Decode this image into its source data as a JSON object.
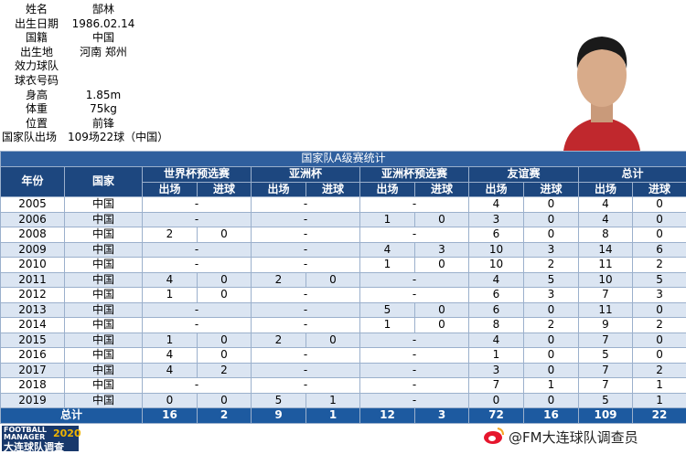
{
  "info": [
    {
      "label": "姓名",
      "value": "郜林"
    },
    {
      "label": "出生日期",
      "value": "1986.02.14"
    },
    {
      "label": "国籍",
      "value": "中国"
    },
    {
      "label": "出生地",
      "value": "河南 郑州"
    },
    {
      "label": "效力球队"
    },
    {
      "label": "球衣号码"
    },
    {
      "label": "身高",
      "value": "1.85m"
    },
    {
      "label": "体重",
      "value": "75kg"
    },
    {
      "label": "位置",
      "value": "前锋"
    },
    {
      "label": "国家队出场",
      "value": "109场22球（中国）"
    }
  ],
  "table": {
    "title": "国家队A级赛统计",
    "columns": [
      "年份",
      "国家"
    ],
    "groups": [
      {
        "name": "世界杯预选赛",
        "sub": [
          "出场",
          "进球"
        ]
      },
      {
        "name": "亚洲杯",
        "sub": [
          "出场",
          "进球"
        ]
      },
      {
        "name": "亚洲杯预选赛",
        "sub": [
          "出场",
          "进球"
        ]
      },
      {
        "name": "友谊赛",
        "sub": [
          "出场",
          "进球"
        ]
      },
      {
        "name": "总计",
        "sub": [
          "出场",
          "进球"
        ]
      }
    ],
    "rows": [
      {
        "year": "2005",
        "country": "中国",
        "stats": [
          "-",
          "-",
          "-",
          [
            4,
            0
          ],
          [
            4,
            0
          ]
        ]
      },
      {
        "year": "2006",
        "country": "中国",
        "stats": [
          "-",
          "-",
          [
            1,
            0
          ],
          [
            3,
            0
          ],
          [
            4,
            0
          ]
        ]
      },
      {
        "year": "2008",
        "country": "中国",
        "stats": [
          [
            2,
            0
          ],
          "-",
          "-",
          [
            6,
            0
          ],
          [
            8,
            0
          ]
        ]
      },
      {
        "year": "2009",
        "country": "中国",
        "stats": [
          "-",
          "-",
          [
            4,
            3
          ],
          [
            10,
            3
          ],
          [
            14,
            6
          ]
        ]
      },
      {
        "year": "2010",
        "country": "中国",
        "stats": [
          "-",
          "-",
          [
            1,
            0
          ],
          [
            10,
            2
          ],
          [
            11,
            2
          ]
        ]
      },
      {
        "year": "2011",
        "country": "中国",
        "stats": [
          [
            4,
            0
          ],
          [
            2,
            0
          ],
          "-",
          [
            4,
            5
          ],
          [
            10,
            5
          ]
        ]
      },
      {
        "year": "2012",
        "country": "中国",
        "stats": [
          [
            1,
            0
          ],
          "-",
          "-",
          [
            6,
            3
          ],
          [
            7,
            3
          ]
        ]
      },
      {
        "year": "2013",
        "country": "中国",
        "stats": [
          "-",
          "-",
          [
            5,
            0
          ],
          [
            6,
            0
          ],
          [
            11,
            0
          ]
        ]
      },
      {
        "year": "2014",
        "country": "中国",
        "stats": [
          "-",
          "-",
          [
            1,
            0
          ],
          [
            8,
            2
          ],
          [
            9,
            2
          ]
        ]
      },
      {
        "year": "2015",
        "country": "中国",
        "stats": [
          [
            1,
            0
          ],
          [
            2,
            0
          ],
          "-",
          [
            4,
            0
          ],
          [
            7,
            0
          ]
        ]
      },
      {
        "year": "2016",
        "country": "中国",
        "stats": [
          [
            4,
            0
          ],
          "-",
          "-",
          [
            1,
            0
          ],
          [
            5,
            0
          ]
        ]
      },
      {
        "year": "2017",
        "country": "中国",
        "stats": [
          [
            4,
            2
          ],
          "-",
          "-",
          [
            3,
            0
          ],
          [
            7,
            2
          ]
        ]
      },
      {
        "year": "2018",
        "country": "中国",
        "stats": [
          "-",
          "-",
          "-",
          [
            7,
            1
          ],
          [
            7,
            1
          ]
        ]
      },
      {
        "year": "2019",
        "country": "中国",
        "stats": [
          [
            0,
            0
          ],
          [
            5,
            1
          ],
          "-",
          [
            0,
            0
          ],
          [
            5,
            1
          ]
        ]
      }
    ],
    "total": {
      "label": "总计",
      "stats": [
        [
          16,
          2
        ],
        [
          9,
          1
        ],
        [
          12,
          3
        ],
        [
          72,
          16
        ],
        [
          109,
          22
        ]
      ]
    }
  },
  "footer": {
    "logo": [
      "FOOTBALL",
      "MANAGER",
      "2020",
      "大连球队调查"
    ],
    "handle": "@FM大连球队调查员"
  }
}
